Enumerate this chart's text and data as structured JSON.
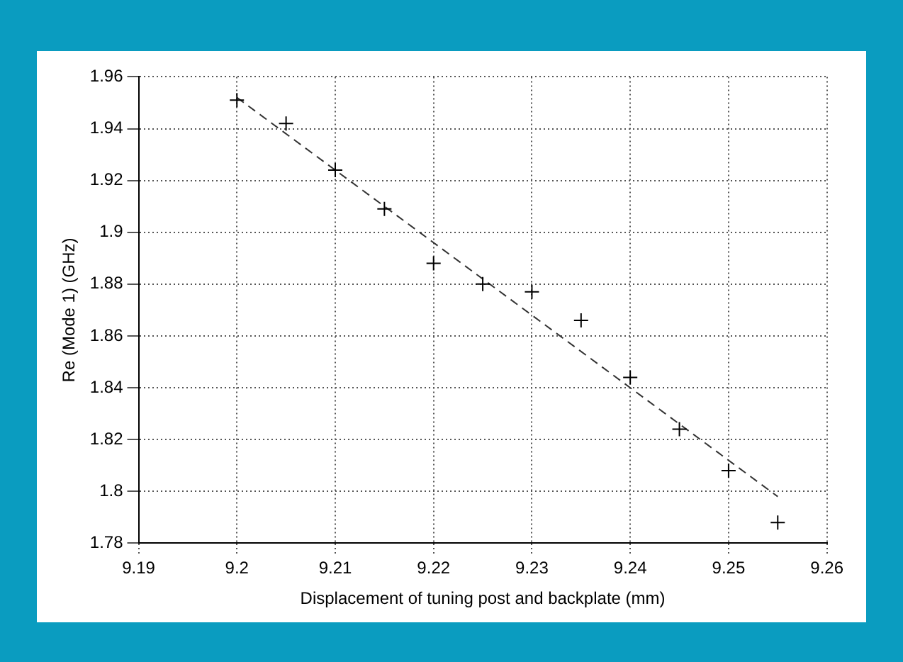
{
  "chart_data": {
    "type": "scatter",
    "xlabel": "Displacement of tuning post and backplate (mm)",
    "ylabel": "Re (Mode 1) (GHz)",
    "series": [
      {
        "color": "#000000",
        "marker": "cross",
        "x": [
          9.2,
          9.205,
          9.21,
          9.215,
          9.22,
          9.225,
          9.23,
          9.235,
          9.24,
          9.245,
          9.25,
          9.255
        ],
        "values": [
          1.951,
          1.942,
          1.924,
          1.909,
          1.888,
          1.88,
          1.877,
          1.866,
          1.844,
          1.824,
          1.808,
          1.788
        ]
      },
      {
        "type": "line",
        "color": "#333333",
        "line_style": "dashed",
        "marker": "none",
        "x": [
          9.2,
          9.255
        ],
        "values": [
          1.952,
          1.798
        ]
      }
    ],
    "xlim": [
      9.19,
      9.26
    ],
    "xticks": [
      9.19,
      9.2,
      9.21,
      9.22,
      9.23,
      9.24,
      9.25,
      9.26
    ],
    "ylim": [
      1.78,
      1.96
    ],
    "yticks": [
      1.78,
      1.8,
      1.82,
      1.84,
      1.86,
      1.88,
      1.9,
      1.92,
      1.94,
      1.96
    ],
    "grid": true
  }
}
